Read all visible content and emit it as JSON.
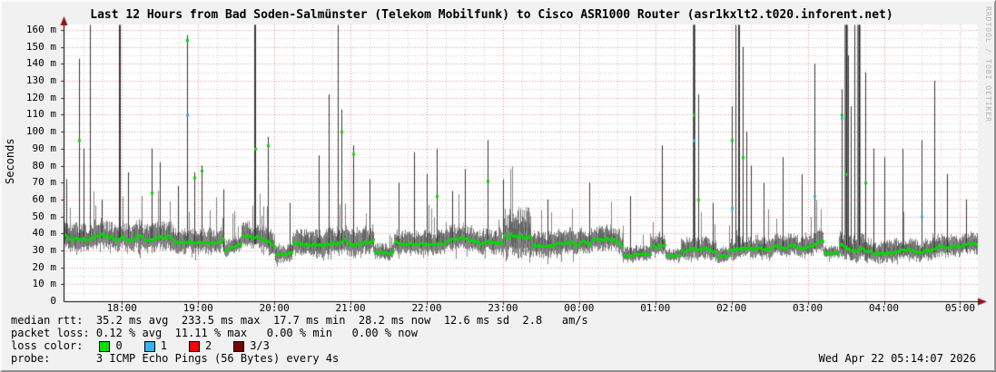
{
  "chart_data": {
    "type": "smokeping-latency-line",
    "title": "Last 12 Hours from Bad Soden-Salmünster (Telekom Mobilfunk) to Cisco ASR1000 Router (asr1kxlt2.t020.inforent.net)",
    "ylabel": "Seconds",
    "watermark": "RRDTOOL / TOBI OETIKER",
    "x_start": "17:14",
    "x_end": "05:14",
    "x_ticks": [
      "18:00",
      "19:00",
      "20:00",
      "21:00",
      "22:00",
      "23:00",
      "00:00",
      "01:00",
      "02:00",
      "03:00",
      "04:00",
      "05:00"
    ],
    "y_ticks": [
      {
        "v": 160,
        "label": "160 m"
      },
      {
        "v": 150,
        "label": "150 m"
      },
      {
        "v": 140,
        "label": "140 m"
      },
      {
        "v": 130,
        "label": "130 m"
      },
      {
        "v": 120,
        "label": "120 m"
      },
      {
        "v": 110,
        "label": "110 m"
      },
      {
        "v": 100,
        "label": "100 m"
      },
      {
        "v": 90,
        "label": "90 m"
      },
      {
        "v": 80,
        "label": "80 m"
      },
      {
        "v": 70,
        "label": "70 m"
      },
      {
        "v": 60,
        "label": "60 m"
      },
      {
        "v": 50,
        "label": "50 m"
      },
      {
        "v": 40,
        "label": "40 m"
      },
      {
        "v": 30,
        "label": "30 m"
      },
      {
        "v": 20,
        "label": "20 m"
      },
      {
        "v": 10,
        "label": "10 m"
      },
      {
        "v": 0,
        "label": "0"
      }
    ],
    "y_unit": "ms (milliseconds, axis in Seconds x 10^-3)",
    "y_max_label": 160,
    "y_clip": 163,
    "grid": {
      "major_y_step_ms": 10,
      "minor_y_step_ms": 5,
      "major_x_step_min": 60,
      "minor_x_step_min": 15
    },
    "layout": {
      "left": 68,
      "right": 1075,
      "clip_top": 25,
      "bottom": 330,
      "y_at_max": 31
    },
    "colors": {
      "plot_bg": "#ffffff",
      "grid_major": "#ee8e8e",
      "grid_minor": "#cfcfcf",
      "smoke": "#848484",
      "smoke_dark": "#3d3d3d",
      "median": "#00dc00",
      "loss1_blue": "#32b4f0",
      "spike": "#383838",
      "spike_wide": "#7a7a7a",
      "spike_dark": "#242424",
      "axis": "#000000",
      "arrow": "#8b1515"
    },
    "seed": 1337,
    "noise": {
      "tail_prob": 0.055,
      "tail_scale": 2.0
    },
    "baseline_segments": [
      [
        "17:14",
        "18:40",
        40,
        9
      ],
      [
        "18:40",
        "19:20",
        38,
        8
      ],
      [
        "19:20",
        "19:34",
        31,
        6
      ],
      [
        "19:34",
        "20:00",
        36,
        8
      ],
      [
        "20:00",
        "20:14",
        30,
        6
      ],
      [
        "20:14",
        "21:18",
        37,
        9
      ],
      [
        "21:18",
        "21:34",
        30,
        5
      ],
      [
        "21:34",
        "23:00",
        37,
        8
      ],
      [
        "23:00",
        "23:22",
        44,
        16
      ],
      [
        "23:22",
        "00:34",
        36,
        8
      ],
      [
        "00:34",
        "00:56",
        29,
        5
      ],
      [
        "00:56",
        "01:08",
        34,
        7
      ],
      [
        "01:08",
        "01:20",
        28,
        4
      ],
      [
        "01:20",
        "01:48",
        32,
        7
      ],
      [
        "01:48",
        "01:58",
        29,
        5
      ],
      [
        "01:58",
        "03:12",
        33,
        7
      ],
      [
        "03:12",
        "03:24",
        27,
        4
      ],
      [
        "03:24",
        "03:50",
        33,
        8
      ],
      [
        "03:50",
        "05:14",
        31,
        7
      ]
    ],
    "spikes": [
      {
        "t": "17:16",
        "top": 72
      },
      {
        "t": "17:26",
        "top": 143,
        "med": 95
      },
      {
        "t": "17:30",
        "top": 90
      },
      {
        "t": "17:35",
        "top": 163
      },
      {
        "t": "17:44",
        "top": 60
      },
      {
        "t": "17:58",
        "top": 163,
        "w": 2
      },
      {
        "t": "18:05",
        "top": 76
      },
      {
        "t": "18:23",
        "top": 90,
        "med": 64
      },
      {
        "t": "18:30",
        "top": 82
      },
      {
        "t": "18:44",
        "top": 68
      },
      {
        "t": "18:51",
        "top": 157,
        "med": 154,
        "blue": 110
      },
      {
        "t": "18:57",
        "top": 76,
        "med": 73
      },
      {
        "t": "19:03",
        "top": 80,
        "med": 77
      },
      {
        "t": "19:20",
        "top": 66
      },
      {
        "t": "19:45",
        "top": 163,
        "w": 2,
        "med": 90
      },
      {
        "t": "19:55",
        "top": 97,
        "med": 92
      },
      {
        "t": "20:12",
        "top": 58
      },
      {
        "t": "20:35",
        "top": 86
      },
      {
        "t": "20:43",
        "top": 122
      },
      {
        "t": "20:50",
        "top": 163
      },
      {
        "t": "20:53",
        "top": 113,
        "med": 100
      },
      {
        "t": "21:02",
        "top": 92,
        "med": 87
      },
      {
        "t": "21:15",
        "top": 72
      },
      {
        "t": "21:38",
        "top": 70
      },
      {
        "t": "21:50",
        "top": 88
      },
      {
        "t": "22:00",
        "top": 75
      },
      {
        "t": "22:08",
        "top": 90,
        "med": 62
      },
      {
        "t": "22:20",
        "top": 65
      },
      {
        "t": "22:30",
        "top": 78
      },
      {
        "t": "22:48",
        "top": 95,
        "med": 71
      },
      {
        "t": "23:00",
        "top": 72
      },
      {
        "t": "23:35",
        "top": 60
      },
      {
        "t": "00:08",
        "top": 70
      },
      {
        "t": "00:40",
        "top": 62
      },
      {
        "t": "01:05",
        "top": 92
      },
      {
        "t": "01:30",
        "top": 163,
        "w": 3,
        "med": 110,
        "blue": 95
      },
      {
        "t": "01:34",
        "top": 122,
        "med": 60
      },
      {
        "t": "01:45",
        "top": 58
      },
      {
        "t": "02:00",
        "top": 115,
        "med": 95,
        "blue": 55
      },
      {
        "t": "02:03",
        "top": 163
      },
      {
        "t": "02:06",
        "top": 163,
        "w": 2
      },
      {
        "t": "02:09",
        "top": 150,
        "med": 85
      },
      {
        "t": "02:12",
        "top": 100
      },
      {
        "t": "02:15",
        "top": 80
      },
      {
        "t": "02:25",
        "top": 70
      },
      {
        "t": "02:40",
        "top": 85
      },
      {
        "t": "02:55",
        "top": 75
      },
      {
        "t": "03:05",
        "top": 140,
        "blue": 62
      },
      {
        "t": "03:27",
        "top": 125,
        "med": 110,
        "blue": 108
      },
      {
        "t": "03:30",
        "top": 163,
        "w": 4,
        "med": 75
      },
      {
        "t": "03:32",
        "top": 145
      },
      {
        "t": "03:34",
        "top": 115
      },
      {
        "t": "03:37",
        "top": 163
      },
      {
        "t": "03:40",
        "top": 163,
        "w": 4
      },
      {
        "t": "03:45",
        "top": 135,
        "med": 70
      },
      {
        "t": "03:52",
        "top": 90
      },
      {
        "t": "04:00",
        "top": 85
      },
      {
        "t": "04:15",
        "top": 90
      },
      {
        "t": "04:30",
        "top": 95,
        "blue": 50
      },
      {
        "t": "04:40",
        "top": 130
      },
      {
        "t": "04:50",
        "top": 75
      },
      {
        "t": "05:05",
        "top": 60
      }
    ]
  },
  "stats": {
    "lines": [
      "median rtt:  35.2 ms avg  233.5 ms max  17.7 ms min  28.2 ms now  12.6 ms sd  2.8   am/s",
      "packet loss: 0.12 % avg  11.11 % max   0.00 % min   0.00 % now"
    ],
    "loss_color_label": "loss color:",
    "loss_colors": [
      {
        "label": "0",
        "color": "#00e400"
      },
      {
        "label": "1",
        "color": "#32b4f0"
      },
      {
        "label": "2",
        "color": "#ff0000"
      },
      {
        "label": "3/3",
        "color": "#7f0000"
      }
    ],
    "probe_line": "probe:       3 ICMP Echo Pings (56 Bytes) every 4s",
    "timestamp": "Wed Apr 22 05:14:07 2026"
  }
}
